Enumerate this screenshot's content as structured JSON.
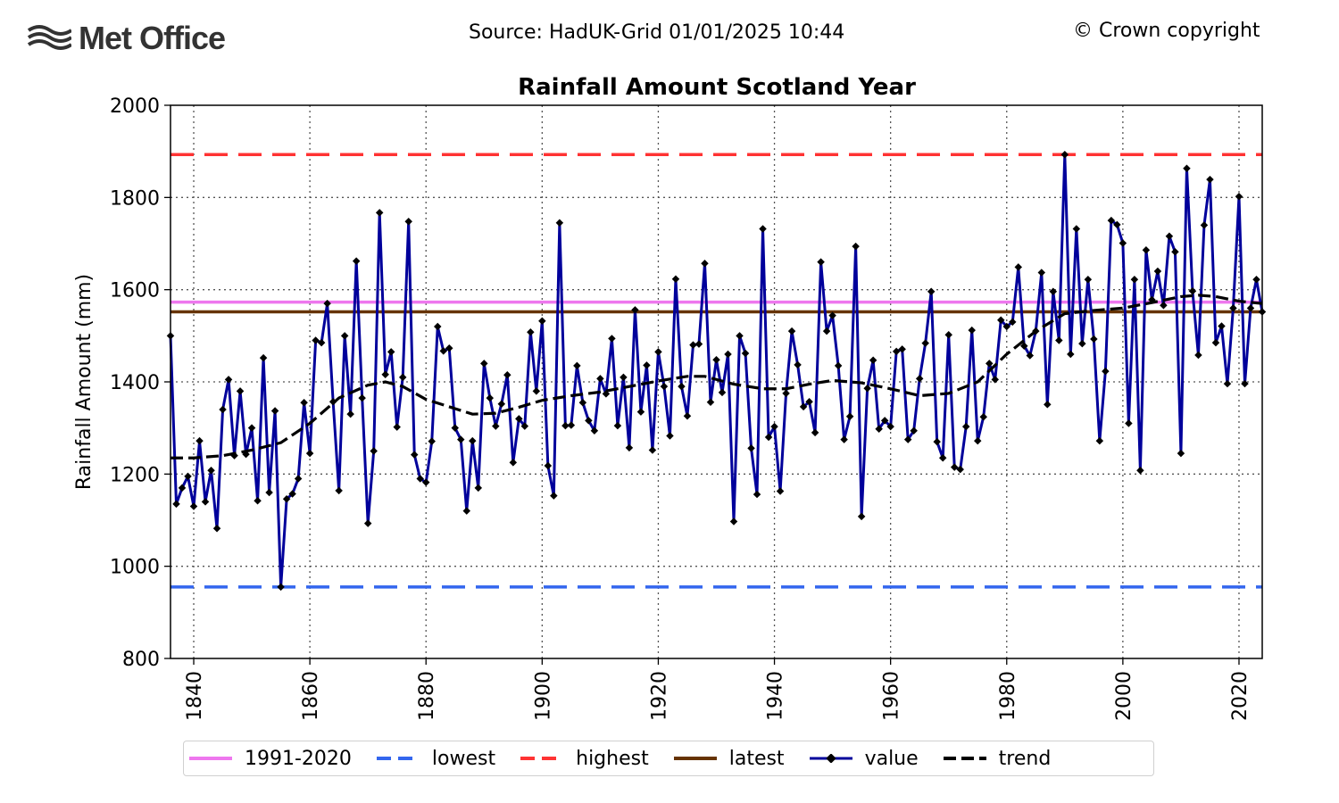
{
  "header": {
    "logo_text": "Met Office",
    "source": "Source: HadUK-Grid 01/01/2025 10:44",
    "copyright": "© Crown copyright"
  },
  "colors": {
    "value": "#00009b",
    "trend": "#000000",
    "baseline": "#ee77ee",
    "lowest": "#3366ee",
    "highest": "#ff3333",
    "latest": "#663300"
  },
  "chart_data": {
    "type": "line",
    "title": "Rainfall Amount Scotland Year",
    "xlabel": "",
    "ylabel": "Rainfall Amount (mm)",
    "xlim": [
      1836,
      2024
    ],
    "ylim": [
      800,
      2000
    ],
    "x_ticks": [
      1840,
      1860,
      1880,
      1900,
      1920,
      1940,
      1960,
      1980,
      2000,
      2020
    ],
    "y_ticks": [
      800,
      1000,
      1200,
      1400,
      1600,
      1800,
      2000
    ],
    "grid": true,
    "legend_position": "bottom",
    "reference_lines": [
      {
        "name": "1991-2020",
        "value": 1573,
        "style": "solid"
      },
      {
        "name": "lowest",
        "value": 955,
        "style": "dashed"
      },
      {
        "name": "highest",
        "value": 1893,
        "style": "dashed"
      },
      {
        "name": "latest",
        "value": 1552,
        "style": "solid"
      }
    ],
    "series": [
      {
        "name": "value",
        "x_start": 1836,
        "values": [
          1500,
          1135,
          1170,
          1195,
          1130,
          1272,
          1140,
          1208,
          1082,
          1340,
          1405,
          1240,
          1380,
          1243,
          1300,
          1142,
          1452,
          1160,
          1337,
          955,
          1146,
          1157,
          1190,
          1355,
          1245,
          1490,
          1485,
          1570,
          1357,
          1164,
          1500,
          1330,
          1662,
          1365,
          1093,
          1250,
          1767,
          1416,
          1465,
          1302,
          1410,
          1748,
          1242,
          1190,
          1182,
          1271,
          1520,
          1467,
          1473,
          1300,
          1275,
          1120,
          1272,
          1170,
          1440,
          1365,
          1304,
          1352,
          1415,
          1225,
          1320,
          1304,
          1508,
          1380,
          1532,
          1218,
          1153,
          1745,
          1305,
          1306,
          1435,
          1355,
          1316,
          1294,
          1407,
          1374,
          1494,
          1305,
          1410,
          1257,
          1556,
          1335,
          1436,
          1252,
          1465,
          1390,
          1283,
          1623,
          1390,
          1326,
          1480,
          1482,
          1657,
          1356,
          1448,
          1377,
          1460,
          1097,
          1500,
          1462,
          1256,
          1156,
          1732,
          1280,
          1303,
          1163,
          1375,
          1510,
          1437,
          1346,
          1357,
          1290,
          1660,
          1510,
          1544,
          1435,
          1275,
          1325,
          1694,
          1108,
          1386,
          1447,
          1298,
          1316,
          1303,
          1466,
          1471,
          1275,
          1294,
          1407,
          1484,
          1596,
          1270,
          1235,
          1502,
          1215,
          1210,
          1303,
          1512,
          1272,
          1324,
          1440,
          1405,
          1534,
          1520,
          1530,
          1649,
          1478,
          1457,
          1510,
          1637,
          1351,
          1596,
          1490,
          1893,
          1460,
          1732,
          1483,
          1622,
          1493,
          1272,
          1423,
          1750,
          1741,
          1701,
          1310,
          1622,
          1208,
          1686,
          1578,
          1640,
          1566,
          1716,
          1682,
          1245,
          1863,
          1597,
          1458,
          1740,
          1839,
          1485,
          1521,
          1396,
          1560,
          1802,
          1396,
          1560,
          1622,
          1552
        ]
      },
      {
        "name": "trend",
        "points": [
          [
            1836,
            1235
          ],
          [
            1840,
            1235
          ],
          [
            1845,
            1240
          ],
          [
            1850,
            1252
          ],
          [
            1855,
            1268
          ],
          [
            1860,
            1310
          ],
          [
            1865,
            1365
          ],
          [
            1870,
            1393
          ],
          [
            1873,
            1400
          ],
          [
            1876,
            1390
          ],
          [
            1880,
            1362
          ],
          [
            1885,
            1342
          ],
          [
            1888,
            1330
          ],
          [
            1892,
            1332
          ],
          [
            1896,
            1345
          ],
          [
            1900,
            1360
          ],
          [
            1905,
            1370
          ],
          [
            1910,
            1378
          ],
          [
            1915,
            1390
          ],
          [
            1920,
            1402
          ],
          [
            1925,
            1412
          ],
          [
            1928,
            1412
          ],
          [
            1933,
            1395
          ],
          [
            1938,
            1385
          ],
          [
            1942,
            1385
          ],
          [
            1946,
            1395
          ],
          [
            1950,
            1403
          ],
          [
            1955,
            1398
          ],
          [
            1960,
            1385
          ],
          [
            1965,
            1370
          ],
          [
            1970,
            1375
          ],
          [
            1975,
            1400
          ],
          [
            1980,
            1460
          ],
          [
            1985,
            1510
          ],
          [
            1990,
            1548
          ],
          [
            1995,
            1555
          ],
          [
            2000,
            1560
          ],
          [
            2005,
            1572
          ],
          [
            2010,
            1585
          ],
          [
            2013,
            1588
          ],
          [
            2016,
            1585
          ],
          [
            2020,
            1575
          ],
          [
            2024,
            1570
          ]
        ]
      }
    ]
  }
}
